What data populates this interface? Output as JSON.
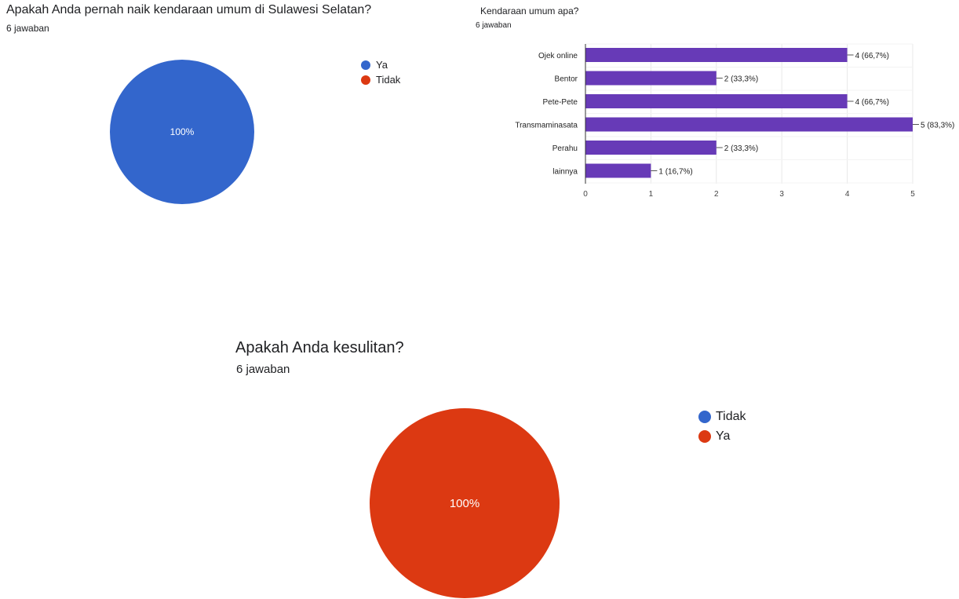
{
  "q1": {
    "title": "Apakah Anda pernah naik kendaraan umum di Sulawesi Selatan?",
    "count": "6 jawaban",
    "pie_label": "100%",
    "legend": [
      {
        "label": "Ya",
        "color": "#3366cc"
      },
      {
        "label": "Tidak",
        "color": "#dc3912"
      }
    ]
  },
  "q2": {
    "title": "Kendaraan umum apa?",
    "count": "6 jawaban"
  },
  "q3": {
    "title": "Apakah Anda kesulitan?",
    "count": "6 jawaban",
    "pie_label": "100%",
    "legend": [
      {
        "label": "Tidak",
        "color": "#3366cc"
      },
      {
        "label": "Ya",
        "color": "#dc3912"
      }
    ]
  },
  "chart_data": [
    {
      "type": "pie",
      "title": "Apakah Anda pernah naik kendaraan umum di Sulawesi Selatan?",
      "categories": [
        "Ya",
        "Tidak"
      ],
      "values": [
        6,
        0
      ],
      "data_labels": [
        "100%"
      ],
      "colors": [
        "#3366cc",
        "#dc3912"
      ],
      "legend": "right"
    },
    {
      "type": "bar",
      "orientation": "horizontal",
      "title": "Kendaraan umum apa?",
      "categories": [
        "Ojek online",
        "Bentor",
        "Pete-Pete",
        "Transmaminasata",
        "Perahu",
        "lainnya"
      ],
      "values": [
        4,
        2,
        4,
        5,
        2,
        1
      ],
      "data_labels": [
        "4 (66,7%)",
        "2 (33,3%)",
        "4 (66,7%)",
        "5 (83,3%)",
        "2 (33,3%)",
        "1 (16,7%)"
      ],
      "xlim": [
        0,
        5
      ],
      "xticks": [
        "0",
        "1",
        "2",
        "3",
        "4",
        "5"
      ],
      "color": "#673ab7",
      "grid": true
    },
    {
      "type": "pie",
      "title": "Apakah Anda kesulitan?",
      "categories": [
        "Tidak",
        "Ya"
      ],
      "values": [
        0,
        6
      ],
      "data_labels": [
        "100%"
      ],
      "colors": [
        "#3366cc",
        "#dc3912"
      ],
      "legend": "right"
    }
  ]
}
